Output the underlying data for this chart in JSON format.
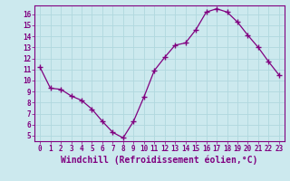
{
  "x": [
    0,
    1,
    2,
    3,
    4,
    5,
    6,
    7,
    8,
    9,
    10,
    11,
    12,
    13,
    14,
    15,
    16,
    17,
    18,
    19,
    20,
    21,
    22,
    23
  ],
  "y": [
    11.2,
    9.3,
    9.2,
    8.6,
    8.2,
    7.4,
    6.3,
    5.3,
    4.8,
    6.3,
    8.5,
    10.9,
    12.1,
    13.2,
    13.4,
    14.6,
    16.2,
    16.5,
    16.2,
    15.3,
    14.1,
    13.0,
    11.7,
    10.5
  ],
  "line_color": "#800080",
  "marker": "+",
  "marker_size": 4,
  "marker_linewidth": 1.0,
  "xlabel": "Windchill (Refroidissement éolien,°C)",
  "xlabel_fontsize": 7,
  "xlim": [
    -0.5,
    23.5
  ],
  "ylim": [
    4.5,
    16.8
  ],
  "yticks": [
    5,
    6,
    7,
    8,
    9,
    10,
    11,
    12,
    13,
    14,
    15,
    16
  ],
  "xticks": [
    0,
    1,
    2,
    3,
    4,
    5,
    6,
    7,
    8,
    9,
    10,
    11,
    12,
    13,
    14,
    15,
    16,
    17,
    18,
    19,
    20,
    21,
    22,
    23
  ],
  "background_color": "#cce9ee",
  "grid_color": "#b0d8de",
  "tick_color": "#800080",
  "tick_fontsize": 5.5,
  "line_width": 0.9,
  "spine_color": "#800080"
}
